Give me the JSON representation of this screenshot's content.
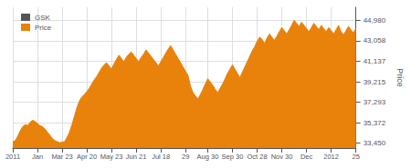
{
  "chart_data": {
    "type": "area",
    "ylabel": "Price",
    "legend": "upper left",
    "grid": true,
    "ylim": [
      33000,
      46200
    ],
    "yticks": [
      {
        "value": 33450,
        "label": "33,450"
      },
      {
        "value": 35372,
        "label": "35,372"
      },
      {
        "value": 37293,
        "label": "37,293"
      },
      {
        "value": 39215,
        "label": "39,215"
      },
      {
        "value": 41137,
        "label": "41,137"
      },
      {
        "value": 43058,
        "label": "43,058"
      },
      {
        "value": 44980,
        "label": "44,980"
      }
    ],
    "categories": [
      "2011",
      null,
      null,
      null,
      null,
      null,
      null,
      null,
      null,
      null,
      "Jan",
      null,
      null,
      null,
      null,
      null,
      null,
      null,
      null,
      null,
      "Mar 23",
      null,
      null,
      null,
      null,
      null,
      null,
      null,
      null,
      null,
      "Apr 20",
      null,
      null,
      null,
      null,
      null,
      null,
      null,
      null,
      null,
      "May 23",
      null,
      null,
      null,
      null,
      null,
      null,
      null,
      null,
      null,
      "Jun 21",
      null,
      null,
      null,
      null,
      null,
      null,
      null,
      null,
      null,
      "Jul 18",
      null,
      null,
      null,
      null,
      null,
      null,
      null,
      null,
      null,
      "29",
      null,
      null,
      null,
      null,
      null,
      null,
      null,
      null,
      "Aug 30",
      null,
      null,
      null,
      null,
      null,
      null,
      null,
      null,
      null,
      "Sep 30",
      null,
      null,
      null,
      null,
      null,
      null,
      null,
      null,
      null,
      "Oct 28",
      null,
      null,
      null,
      null,
      null,
      null,
      null,
      null,
      null,
      "Nov 30",
      null,
      null,
      null,
      null,
      null,
      null,
      null,
      null,
      null,
      "Dec",
      null,
      null,
      null,
      null,
      null,
      null,
      null,
      null,
      null,
      "2012",
      null,
      null,
      null,
      null,
      null,
      null,
      null,
      null,
      null,
      "25"
    ],
    "series": [
      {
        "name": "GSK",
        "color": "#555555",
        "values": [
          null,
          null,
          null,
          null,
          null,
          null,
          null,
          null,
          null,
          null,
          null,
          null,
          null,
          null,
          null,
          null,
          null,
          null,
          null,
          null,
          null,
          null,
          null,
          null,
          null,
          null,
          null,
          null,
          null,
          null,
          null,
          null,
          null,
          null,
          null,
          null,
          null,
          null,
          null,
          null,
          null,
          null,
          null,
          null,
          null,
          null,
          null,
          null,
          null,
          null,
          null,
          null,
          null,
          null,
          null,
          null,
          null,
          null,
          null,
          null,
          null,
          null,
          null,
          null,
          null,
          null,
          null,
          null,
          null,
          null,
          null,
          null,
          null,
          null,
          null,
          null,
          null,
          null,
          null,
          null,
          null,
          null,
          null,
          null,
          null,
          null,
          null,
          null,
          null,
          null,
          null,
          null,
          null,
          null,
          null,
          null,
          null,
          null,
          null,
          null,
          null,
          null,
          null,
          null,
          null,
          null,
          null,
          null,
          null,
          null,
          null,
          null,
          null,
          null,
          null,
          null,
          null,
          null,
          null,
          null,
          null,
          null,
          null,
          null,
          null,
          null,
          null,
          null,
          null,
          null,
          null,
          null,
          null,
          null,
          null,
          null,
          null,
          null,
          null,
          null
        ]
      },
      {
        "name": "Price",
        "color": "#E8820A",
        "values": [
          33600,
          33700,
          34100,
          34600,
          35000,
          35200,
          35100,
          35400,
          35600,
          35500,
          35300,
          35100,
          35000,
          34800,
          34500,
          34200,
          33900,
          33700,
          33600,
          33500,
          33550,
          33600,
          34000,
          34500,
          35200,
          36000,
          36800,
          37400,
          37800,
          38000,
          38300,
          38600,
          39000,
          39400,
          39700,
          40100,
          40500,
          40800,
          41000,
          40700,
          40400,
          40900,
          41300,
          41700,
          41400,
          41100,
          41500,
          41800,
          42000,
          41700,
          41400,
          41100,
          41500,
          41800,
          42200,
          41900,
          41600,
          41300,
          41000,
          40700,
          41100,
          41500,
          41900,
          42300,
          42600,
          42200,
          41800,
          41400,
          41000,
          40600,
          40200,
          39800,
          38800,
          38200,
          37900,
          37600,
          38000,
          38500,
          39000,
          39500,
          39200,
          38900,
          38500,
          38200,
          38600,
          39000,
          39500,
          40000,
          40400,
          40800,
          40400,
          40000,
          39600,
          40100,
          40600,
          41100,
          41600,
          42100,
          42500,
          43000,
          43400,
          43200,
          42800,
          43300,
          43700,
          43400,
          43100,
          43500,
          43900,
          44300,
          44000,
          43700,
          44100,
          44500,
          44980,
          44700,
          44400,
          44800,
          44500,
          44200,
          43900,
          44300,
          44700,
          44400,
          44100,
          44500,
          44200,
          43900,
          44300,
          44000,
          43700,
          44100,
          44500,
          43900,
          43600,
          44000,
          44400,
          44100,
          43800,
          44200
        ]
      }
    ]
  }
}
